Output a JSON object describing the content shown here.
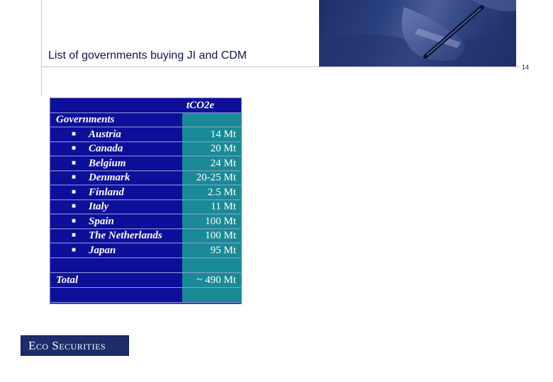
{
  "slide": {
    "title": "List of governments buying JI and CDM",
    "page_number": "14"
  },
  "table": {
    "column_header": "t‌CO2e",
    "section_label": "Governments",
    "rows": [
      {
        "name": "Austria",
        "value": "14 Mt"
      },
      {
        "name": "Canada",
        "value": "20 Mt"
      },
      {
        "name": "Belgium",
        "value": "24 Mt"
      },
      {
        "name": "Denmark",
        "value": "20-25 Mt"
      },
      {
        "name": "Finland",
        "value": "2.5 Mt"
      },
      {
        "name": "Italy",
        "value": "11 Mt"
      },
      {
        "name": "Spain",
        "value": "100 Mt"
      },
      {
        "name": "The Netherlands",
        "value": "100 Mt"
      },
      {
        "name": "Japan",
        "value": "95 Mt"
      }
    ],
    "total_label": "Total",
    "total_value": "~ 490 Mt"
  },
  "logo": {
    "part1_cap": "E",
    "part1_rest": "CO",
    "part2_cap": "S",
    "part2_rest": "ECURITIES"
  },
  "colors": {
    "table_blue": "#0d0f9a",
    "table_teal": "#1a8a96",
    "title_text": "#10164a",
    "logo_bg": "#1e2c6b"
  },
  "icons": [
    "bullet-square-icon"
  ]
}
